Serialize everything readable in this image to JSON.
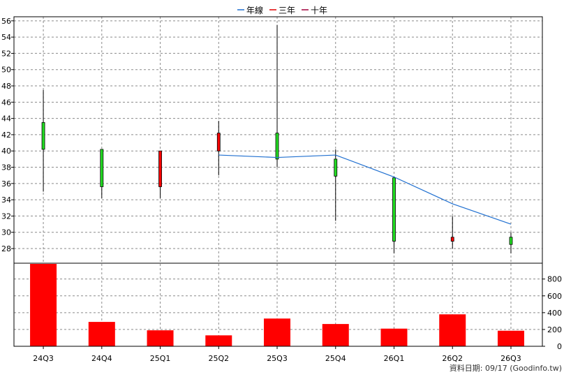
{
  "chart_data": {
    "type": "candlestick",
    "legend": [
      {
        "label": "年線",
        "color": "#1f6fd0"
      },
      {
        "label": "三年",
        "color": "#e00000"
      },
      {
        "label": "十年",
        "color": "#a0003c"
      }
    ],
    "categories": [
      "24Q3",
      "24Q4",
      "25Q1",
      "25Q2",
      "25Q3",
      "25Q4",
      "26Q1",
      "26Q2",
      "26Q3"
    ],
    "price_axis": {
      "ticks": [
        28,
        30,
        32,
        34,
        36,
        38,
        40,
        42,
        44,
        46,
        48,
        50,
        52,
        54,
        56
      ],
      "ylim": [
        26.2,
        56.5
      ]
    },
    "volume_axis": {
      "ticks": [
        0,
        200,
        400,
        600,
        800
      ],
      "ylim": [
        0,
        980
      ]
    },
    "candles": [
      {
        "open": 40.2,
        "high": 47.5,
        "low": 35.0,
        "close": 43.5,
        "color": "green"
      },
      {
        "open": 40.2,
        "high": 40.2,
        "low": 34.2,
        "close": 35.6,
        "color": "green"
      },
      {
        "open": 35.6,
        "high": 40.0,
        "low": 34.2,
        "close": 40.0,
        "color": "red"
      },
      {
        "open": 40.0,
        "high": 43.7,
        "low": 37.0,
        "close": 42.2,
        "color": "red"
      },
      {
        "open": 42.2,
        "high": 55.5,
        "low": 38.0,
        "close": 39.0,
        "color": "green"
      },
      {
        "open": 39.0,
        "high": 40.2,
        "low": 31.4,
        "close": 36.9,
        "color": "green"
      },
      {
        "open": 36.7,
        "high": 36.7,
        "low": 27.4,
        "close": 28.9,
        "color": "green"
      },
      {
        "open": 28.9,
        "high": 32.0,
        "low": 28.0,
        "close": 29.4,
        "color": "red"
      },
      {
        "open": 29.4,
        "high": 30.0,
        "low": 27.4,
        "close": 28.5,
        "color": "green"
      }
    ],
    "series": [
      {
        "name": "年線",
        "color": "#1f6fd0",
        "values": [
          null,
          null,
          null,
          39.5,
          39.2,
          39.5,
          36.8,
          33.5,
          31.0
        ]
      }
    ],
    "volume": [
      1000,
      290,
      190,
      130,
      330,
      265,
      210,
      380,
      185
    ],
    "volume_color": "#ff0000"
  },
  "footer": {
    "text": "資料日期: 09/17  (Goodinfo.tw)"
  }
}
